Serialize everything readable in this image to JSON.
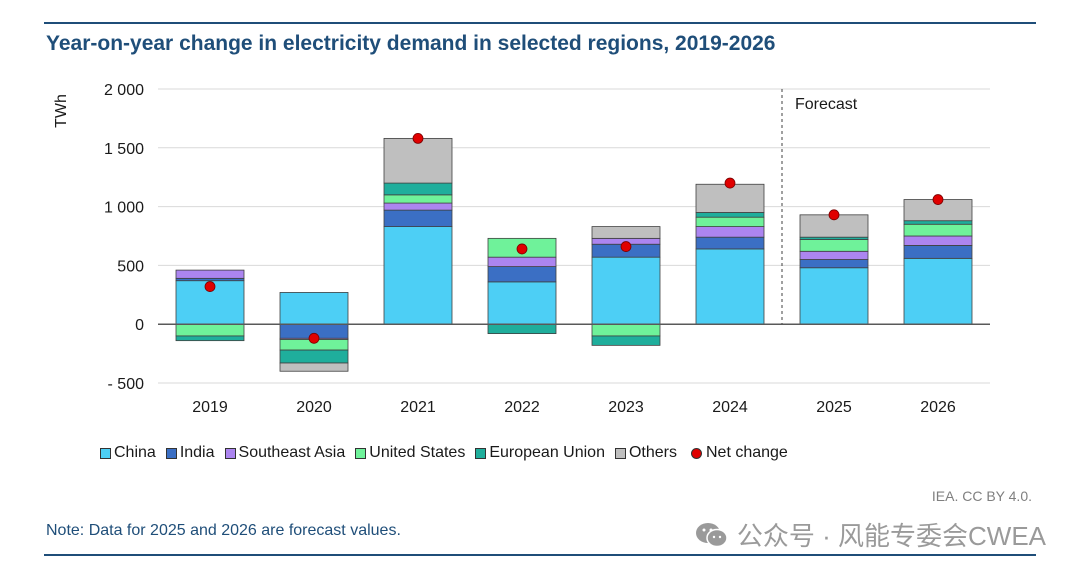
{
  "header": {
    "title": "Year-on-year change in electricity demand in selected regions, 2019-2026"
  },
  "chart_data": {
    "type": "bar",
    "stacked": true,
    "title": "Year-on-year change in electricity demand in selected regions, 2019-2026",
    "ylabel": "TWh",
    "xlabel": "",
    "ylim": [
      -500,
      2000
    ],
    "yticks": [
      -500,
      0,
      500,
      1000,
      1500,
      2000
    ],
    "ytick_labels": [
      "- 500",
      "0",
      "500",
      "1 000",
      "1 500",
      "2 000"
    ],
    "categories": [
      "2019",
      "2020",
      "2021",
      "2022",
      "2023",
      "2024",
      "2025",
      "2026"
    ],
    "series": [
      {
        "name": "China",
        "color": "#4dcff5",
        "values": [
          370,
          270,
          830,
          360,
          570,
          640,
          480,
          560
        ]
      },
      {
        "name": "India",
        "color": "#3b6fc4",
        "values": [
          20,
          -120,
          140,
          130,
          110,
          100,
          70,
          110
        ]
      },
      {
        "name": "Southeast Asia",
        "color": "#ac85f0",
        "values": [
          70,
          -10,
          60,
          80,
          50,
          90,
          70,
          80
        ]
      },
      {
        "name": "United States",
        "color": "#6ff29a",
        "values": [
          -100,
          -90,
          70,
          160,
          -100,
          80,
          100,
          100
        ]
      },
      {
        "name": "European Union",
        "color": "#1fae9c",
        "values": [
          -40,
          -110,
          100,
          -80,
          -80,
          40,
          20,
          30
        ]
      },
      {
        "name": "Others",
        "color": "#bfbfbf",
        "values": [
          0,
          -70,
          380,
          0,
          100,
          240,
          190,
          180
        ]
      }
    ],
    "net_change": {
      "name": "Net change",
      "color": "#e00000",
      "values": [
        320,
        -120,
        1580,
        640,
        660,
        1200,
        930,
        1060
      ]
    },
    "forecast_label": "Forecast",
    "forecast_start": "2025",
    "grid": true,
    "legend_position": "bottom"
  },
  "legend": {
    "items": [
      {
        "label": "China",
        "color": "#4dcff5"
      },
      {
        "label": "India",
        "color": "#3b6fc4"
      },
      {
        "label": "Southeast Asia",
        "color": "#ac85f0"
      },
      {
        "label": "United States",
        "color": "#6ff29a"
      },
      {
        "label": "European Union",
        "color": "#1fae9c"
      },
      {
        "label": "Others",
        "color": "#bfbfbf"
      }
    ],
    "net_label": "Net change"
  },
  "footer": {
    "credit": "IEA. CC BY 4.0.",
    "note": "Note: Data for 2025 and 2026 are forecast values.",
    "watermark": "公众号 · 风能专委会CWEA",
    "watermark_icon": "wechat-icon"
  }
}
